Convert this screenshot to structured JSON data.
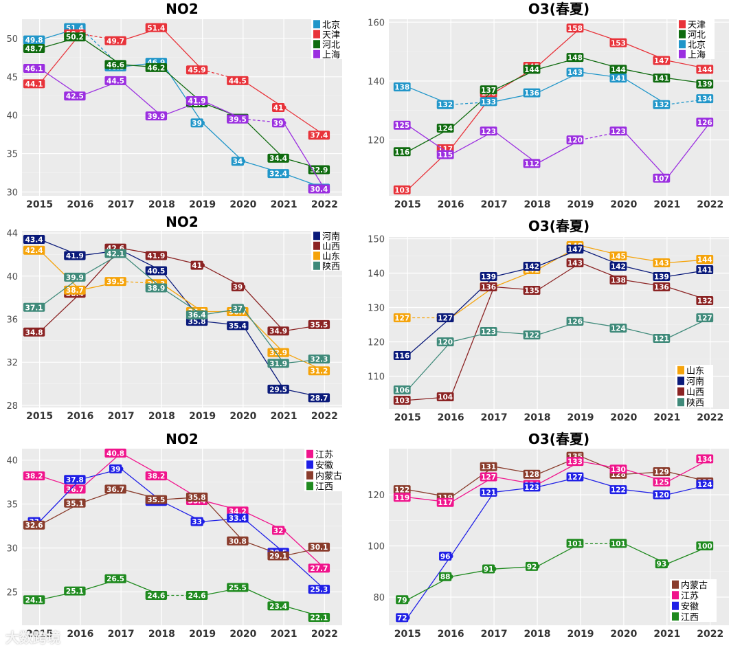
{
  "watermark": "大数跨境",
  "colors": {
    "北京": "#2196c9",
    "天津": "#e8333a",
    "河北": "#0f6b0f",
    "上海": "#9b2fe0",
    "河南": "#0a1a7a",
    "山西": "#8b2323",
    "山东": "#f5a30a",
    "陕西": "#3f8a7a",
    "江苏": "#f0148c",
    "安徽": "#1f1fe6",
    "内蒙古": "#8a3c2c",
    "江西": "#1f8a1f"
  },
  "chart_data": [
    {
      "type": "line",
      "title": "NO2",
      "categories": [
        "2015",
        "2016",
        "2017",
        "2018",
        "2019",
        "2020",
        "2021",
        "2022"
      ],
      "ylim": [
        29.5,
        52.5
      ],
      "yticks": [
        30,
        35,
        40,
        45,
        50
      ],
      "legend": [
        "北京",
        "天津",
        "河北",
        "上海"
      ],
      "series": [
        {
          "name": "北京",
          "values": [
            49.8,
            51.4,
            46.3,
            46.9,
            39,
            34,
            32.4,
            30.5
          ],
          "dashed": [
            1
          ]
        },
        {
          "name": "天津",
          "values": [
            44.1,
            50.6,
            49.7,
            51.4,
            45.9,
            44.5,
            41,
            37.4
          ],
          "dashed": [
            1,
            4
          ]
        },
        {
          "name": "河北",
          "values": [
            48.7,
            50.2,
            46.6,
            46.2,
            41.6,
            39.6,
            34.4,
            32.9
          ],
          "dashed": []
        },
        {
          "name": "上海",
          "values": [
            46.1,
            42.5,
            44.5,
            39.9,
            41.9,
            39.5,
            39,
            30.4
          ],
          "dashed": [
            5
          ]
        }
      ]
    },
    {
      "type": "line",
      "title": "O3(春夏)",
      "categories": [
        "2015",
        "2016",
        "2017",
        "2018",
        "2019",
        "2020",
        "2021",
        "2022"
      ],
      "ylim": [
        101,
        161
      ],
      "yticks": [
        120,
        140,
        160
      ],
      "legend": [
        "天津",
        "河北",
        "北京",
        "上海"
      ],
      "series": [
        {
          "name": "天津",
          "values": [
            103,
            117,
            136,
            145,
            158,
            153,
            147,
            144
          ],
          "dashed": []
        },
        {
          "name": "河北",
          "values": [
            116,
            124,
            137,
            144,
            148,
            144,
            141,
            139
          ],
          "dashed": []
        },
        {
          "name": "北京",
          "values": [
            138,
            132,
            133,
            136,
            143,
            141,
            132,
            134
          ],
          "dashed": [
            1,
            6
          ]
        },
        {
          "name": "上海",
          "values": [
            125,
            115,
            123,
            112,
            120,
            123,
            107,
            126
          ],
          "dashed": [
            4
          ]
        }
      ]
    },
    {
      "type": "line",
      "title": "NO2",
      "categories": [
        "2015",
        "2016",
        "2017",
        "2018",
        "2019",
        "2020",
        "2021",
        "2022"
      ],
      "ylim": [
        27.8,
        44.2
      ],
      "yticks": [
        28,
        32,
        36,
        40,
        44
      ],
      "legend": [
        "河南",
        "山西",
        "山东",
        "陕西"
      ],
      "series": [
        {
          "name": "河南",
          "values": [
            43.4,
            41.9,
            42.4,
            40.5,
            35.8,
            35.4,
            29.5,
            28.7
          ],
          "dashed": []
        },
        {
          "name": "山西",
          "values": [
            34.8,
            38.4,
            42.6,
            41.9,
            41,
            39,
            34.9,
            35.5
          ],
          "dashed": []
        },
        {
          "name": "山东",
          "values": [
            42.4,
            38.7,
            39.5,
            39.3,
            36.7,
            36.7,
            32.9,
            31.2
          ],
          "dashed": [
            2
          ]
        },
        {
          "name": "陕西",
          "values": [
            37.1,
            39.9,
            42.1,
            38.9,
            36.4,
            37,
            31.9,
            32.3
          ],
          "dashed": []
        }
      ]
    },
    {
      "type": "line",
      "title": "O3(春夏)",
      "categories": [
        "2015",
        "2016",
        "2017",
        "2018",
        "2019",
        "2020",
        "2021",
        "2022"
      ],
      "ylim": [
        100.5,
        150.5
      ],
      "yticks": [
        110,
        120,
        130,
        140,
        150
      ],
      "legend": [
        "山东",
        "河南",
        "山西",
        "陕西"
      ],
      "series": [
        {
          "name": "山东",
          "values": [
            127,
            127,
            136,
            141,
            148,
            145,
            143,
            144
          ],
          "dashed": [
            0
          ]
        },
        {
          "name": "河南",
          "values": [
            116,
            127,
            139,
            142,
            147,
            142,
            139,
            141
          ],
          "dashed": []
        },
        {
          "name": "山西",
          "values": [
            103,
            104,
            136,
            135,
            143,
            138,
            136,
            132
          ],
          "dashed": []
        },
        {
          "name": "陕西",
          "values": [
            106,
            120,
            123,
            122,
            126,
            124,
            121,
            127
          ],
          "dashed": []
        }
      ]
    },
    {
      "type": "line",
      "title": "NO2",
      "categories": [
        "2015",
        "2016",
        "2017",
        "2018",
        "2019",
        "2020",
        "2021",
        "2022"
      ],
      "ylim": [
        21.2,
        41.3
      ],
      "yticks": [
        25,
        30,
        35,
        40
      ],
      "legend": [
        "江苏",
        "安徽",
        "内蒙古",
        "江西"
      ],
      "series": [
        {
          "name": "江苏",
          "values": [
            38.2,
            36.7,
            40.8,
            38.2,
            35.4,
            34.2,
            32,
            27.7
          ],
          "dashed": []
        },
        {
          "name": "安徽",
          "values": [
            33,
            37.8,
            39,
            35.3,
            33,
            33.4,
            29.5,
            25.3
          ],
          "dashed": []
        },
        {
          "name": "内蒙古",
          "values": [
            32.6,
            35.1,
            36.7,
            35.5,
            35.8,
            30.8,
            29.1,
            30.1
          ],
          "dashed": []
        },
        {
          "name": "江西",
          "values": [
            24.1,
            25.1,
            26.5,
            24.6,
            24.6,
            25.5,
            23.4,
            22.1
          ],
          "dashed": [
            3
          ]
        }
      ]
    },
    {
      "type": "line",
      "title": "O3(春夏)",
      "categories": [
        "2015",
        "2016",
        "2017",
        "2018",
        "2019",
        "2020",
        "2021",
        "2022"
      ],
      "ylim": [
        69,
        138
      ],
      "yticks": [
        80,
        100,
        120
      ],
      "legend": [
        "内蒙古",
        "江苏",
        "安徽",
        "江西"
      ],
      "series": [
        {
          "name": "内蒙古",
          "values": [
            122,
            119,
            131,
            128,
            135,
            128,
            129,
            125
          ],
          "dashed": []
        },
        {
          "name": "江苏",
          "values": [
            119,
            117,
            127,
            124,
            133,
            130,
            125,
            134
          ],
          "dashed": []
        },
        {
          "name": "安徽",
          "values": [
            72,
            96,
            121,
            123,
            127,
            122,
            120,
            124
          ],
          "dashed": []
        },
        {
          "name": "江西",
          "values": [
            79,
            88,
            91,
            92,
            101,
            101,
            93,
            100
          ],
          "dashed": [
            4
          ]
        }
      ]
    }
  ]
}
